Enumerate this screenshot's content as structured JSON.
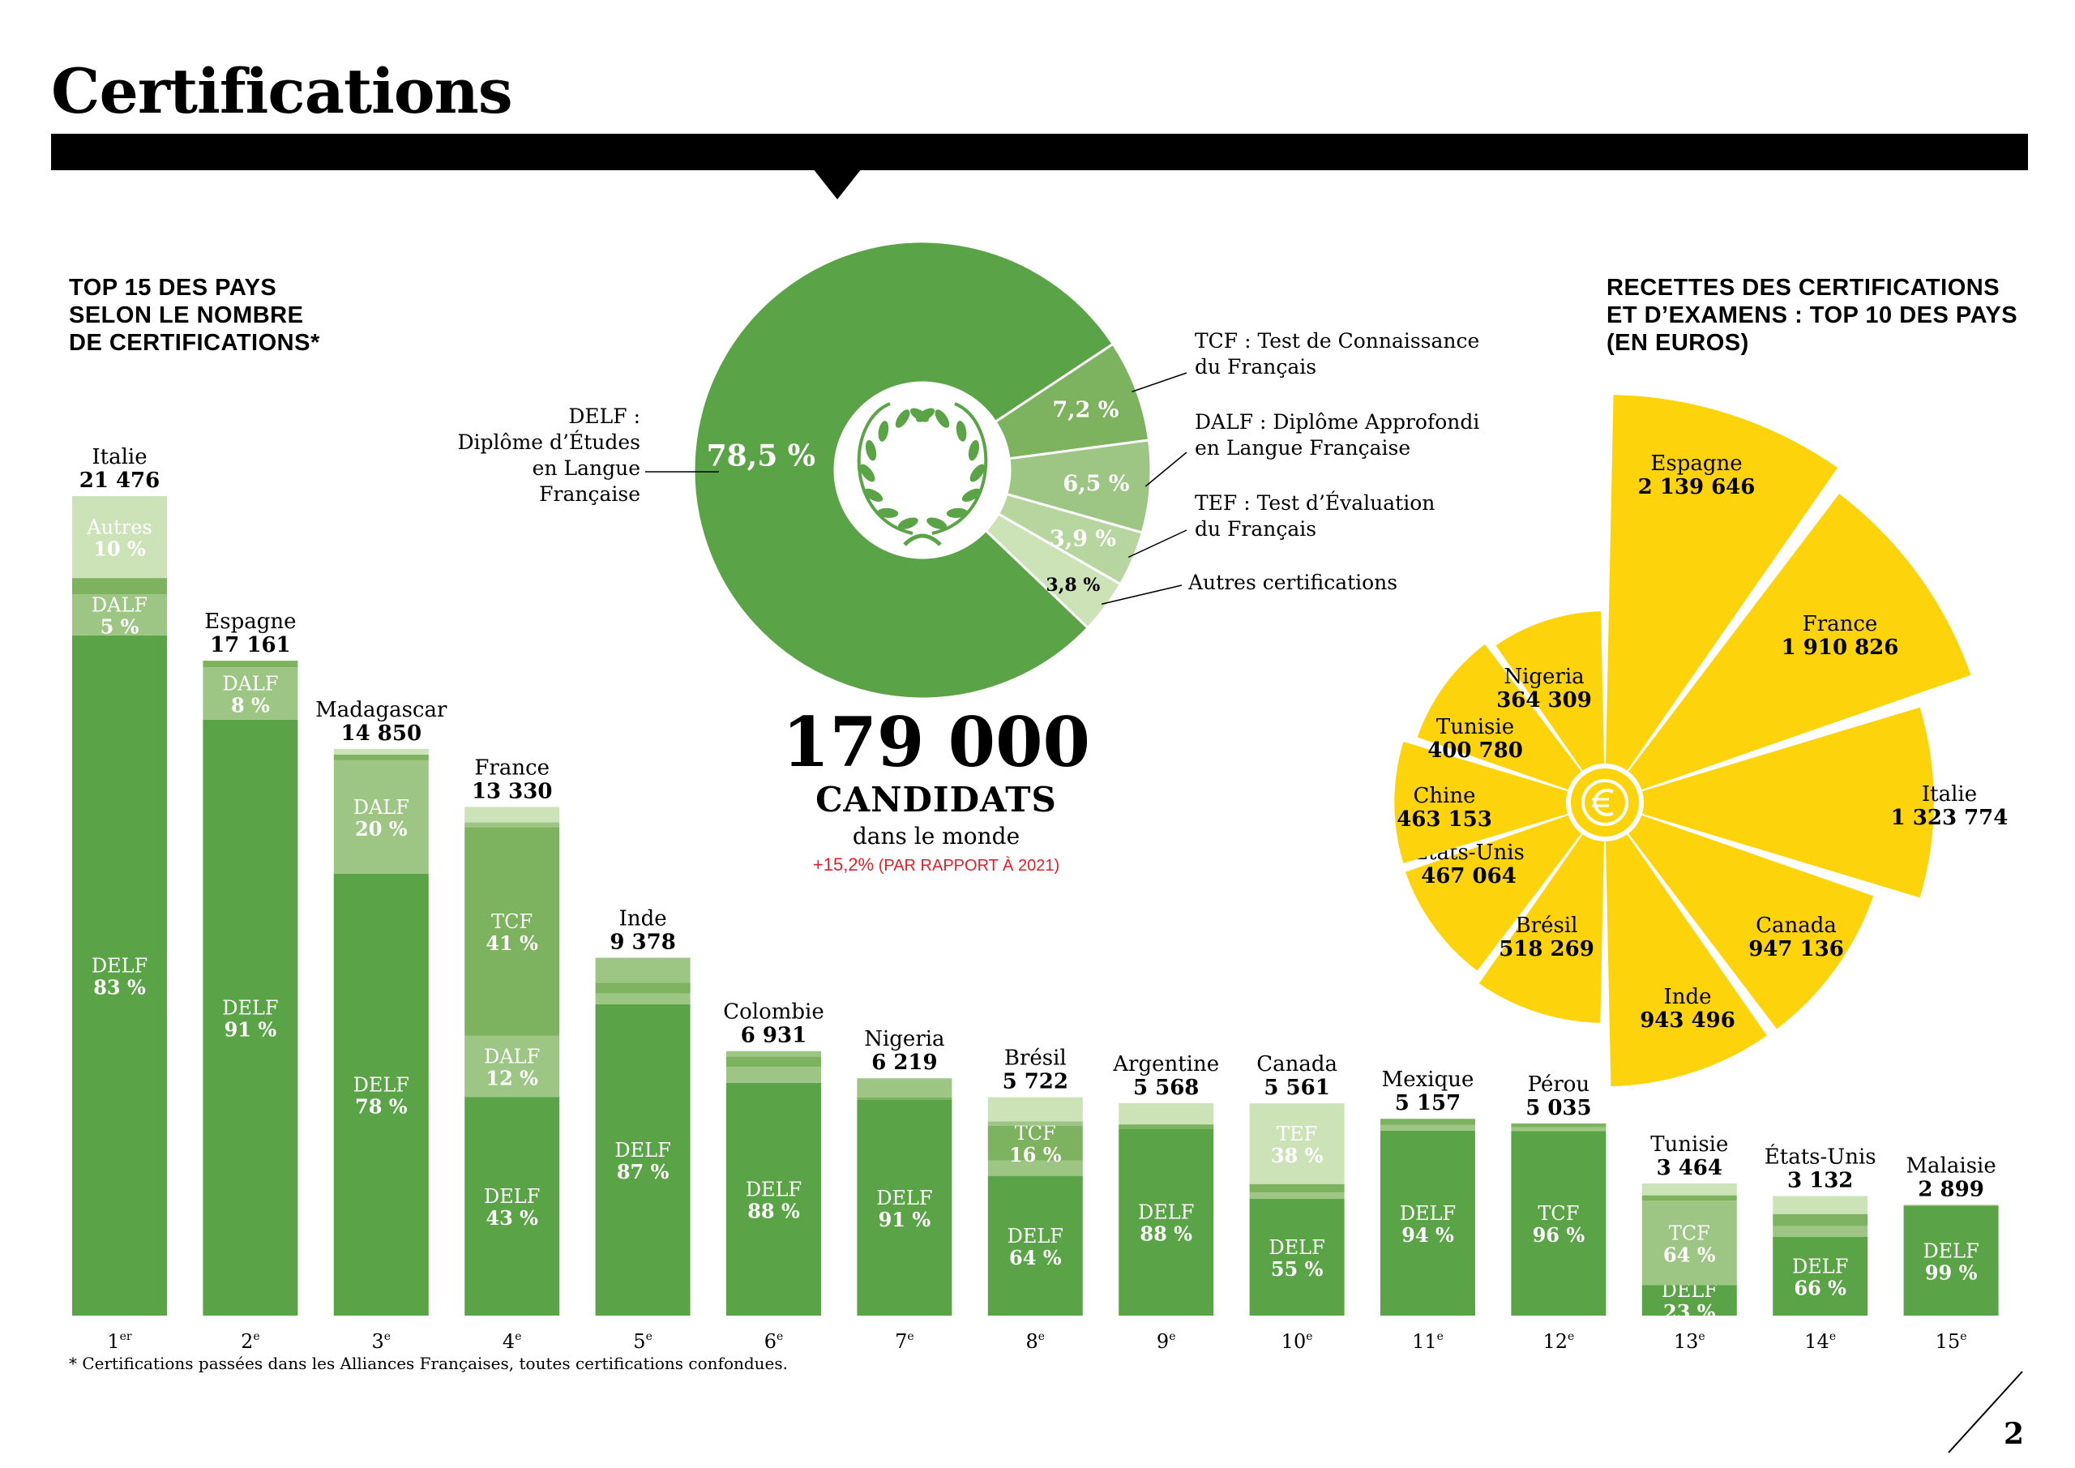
{
  "page": {
    "title": "Certifications",
    "footnote": "* Certifications passées dans les Alliances Françaises, toutes certifications confondues.",
    "page_number": "2"
  },
  "colors": {
    "delf": "#5aa447",
    "second": "#7db25e",
    "third": "#9dc685",
    "light": "#cce3b8",
    "revenue": "#fdd40c",
    "black": "#000000"
  },
  "left_section": {
    "title_lines": [
      "TOP 15 DES PAYS",
      "SELON LE NOMBRE",
      "DE CERTIFICATIONS*"
    ]
  },
  "center": {
    "total_value": "179 000",
    "total_label": "CANDIDATS",
    "subtitle": "dans le monde",
    "growth": "+15,2%",
    "growth_note": "(PAR RAPPORT À 2021)",
    "donut_labels": {
      "delf": [
        "DELF :",
        "Diplôme d’Études",
        "en Langue Française"
      ],
      "tcf": [
        "TCF : Test de Connaissance",
        "du Français"
      ],
      "dalf": [
        "DALF : Diplôme Approfondi",
        "en Langue Française"
      ],
      "tef": [
        "TEF : Test d’Évaluation",
        "du Français"
      ],
      "autres": [
        "Autres certifications"
      ]
    }
  },
  "right_section": {
    "title_lines": [
      "RECETTES DES CERTIFICATIONS",
      "ET D’EXAMENS : TOP 10 DES PAYS",
      "(EN EUROS)"
    ],
    "center_icon": "euro-icon"
  },
  "chart_data": [
    {
      "type": "bar",
      "stacked": true,
      "ranks": [
        "1er",
        "2e",
        "3e",
        "4e",
        "5e",
        "6e",
        "7e",
        "8e",
        "9e",
        "10e",
        "11e",
        "12e",
        "13e",
        "14e",
        "15e"
      ],
      "categories": [
        "Italie",
        "Espagne",
        "Madagascar",
        "France",
        "Inde",
        "Colombie",
        "Nigeria",
        "Brésil",
        "Argentine",
        "Canada",
        "Mexique",
        "Pérou",
        "Tunisie",
        "États-Unis",
        "Malaisie"
      ],
      "values": [
        21476,
        17161,
        14850,
        13330,
        9378,
        6931,
        6219,
        5722,
        5568,
        5561,
        5157,
        5035,
        3464,
        3132,
        2899
      ],
      "value_labels": [
        "21 476",
        "17 161",
        "14 850",
        "13 330",
        "9 378",
        "6 931",
        "6 219",
        "5 722",
        "5 568",
        "5 561",
        "5 157",
        "5 035",
        "3 464",
        "3 132",
        "2 899"
      ],
      "segments": [
        [
          {
            "cert": "DELF",
            "pct": 83,
            "label": "DELF",
            "pct_label": "83 %",
            "shade": "delf"
          },
          {
            "cert": "DALF",
            "pct": 5,
            "label": "DALF",
            "pct_label": "5 %",
            "shade": "third"
          },
          {
            "cert": "",
            "pct": 2,
            "shade": "second"
          },
          {
            "cert": "Autres",
            "pct": 10,
            "label": "Autres",
            "pct_label": "10 %",
            "shade": "light"
          }
        ],
        [
          {
            "cert": "DELF",
            "pct": 91,
            "label": "DELF",
            "pct_label": "91 %",
            "shade": "delf"
          },
          {
            "cert": "DALF",
            "pct": 8,
            "label": "DALF",
            "pct_label": "8 %",
            "shade": "third"
          },
          {
            "cert": "",
            "pct": 1,
            "shade": "second"
          }
        ],
        [
          {
            "cert": "DELF",
            "pct": 78,
            "label": "DELF",
            "pct_label": "78 %",
            "shade": "delf"
          },
          {
            "cert": "DALF",
            "pct": 20,
            "label": "DALF",
            "pct_label": "20 %",
            "shade": "third"
          },
          {
            "cert": "",
            "pct": 1,
            "shade": "second"
          },
          {
            "cert": "",
            "pct": 1,
            "shade": "light"
          }
        ],
        [
          {
            "cert": "DELF",
            "pct": 43,
            "label": "DELF",
            "pct_label": "43 %",
            "shade": "delf"
          },
          {
            "cert": "DALF",
            "pct": 12,
            "label": "DALF",
            "pct_label": "12 %",
            "shade": "third"
          },
          {
            "cert": "TCF",
            "pct": 41,
            "label": "TCF",
            "pct_label": "41 %",
            "shade": "second"
          },
          {
            "cert": "",
            "pct": 1,
            "shade": "third"
          },
          {
            "cert": "",
            "pct": 3,
            "shade": "light"
          }
        ],
        [
          {
            "cert": "DELF",
            "pct": 87,
            "label": "DELF",
            "pct_label": "87 %",
            "shade": "delf"
          },
          {
            "cert": "",
            "pct": 3,
            "shade": "third"
          },
          {
            "cert": "",
            "pct": 3,
            "shade": "second"
          },
          {
            "cert": "",
            "pct": 7,
            "shade": "third"
          }
        ],
        [
          {
            "cert": "DELF",
            "pct": 88,
            "label": "DELF",
            "pct_label": "88 %",
            "shade": "delf"
          },
          {
            "cert": "",
            "pct": 6,
            "shade": "third"
          },
          {
            "cert": "",
            "pct": 4,
            "shade": "second"
          },
          {
            "cert": "",
            "pct": 2,
            "shade": "third"
          }
        ],
        [
          {
            "cert": "DELF",
            "pct": 91,
            "label": "DELF",
            "pct_label": "91 %",
            "shade": "delf"
          },
          {
            "cert": "",
            "pct": 1,
            "shade": "second"
          },
          {
            "cert": "",
            "pct": 8,
            "shade": "third"
          }
        ],
        [
          {
            "cert": "DELF",
            "pct": 64,
            "label": "DELF",
            "pct_label": "64 %",
            "shade": "delf"
          },
          {
            "cert": "",
            "pct": 7,
            "shade": "third"
          },
          {
            "cert": "TCF",
            "pct": 16,
            "label": "TCF",
            "pct_label": "16 %",
            "shade": "second"
          },
          {
            "cert": "",
            "pct": 2,
            "shade": "third"
          },
          {
            "cert": "",
            "pct": 11,
            "shade": "light"
          }
        ],
        [
          {
            "cert": "DELF",
            "pct": 88,
            "label": "DELF",
            "pct_label": "88 %",
            "shade": "delf"
          },
          {
            "cert": "",
            "pct": 2,
            "shade": "second"
          },
          {
            "cert": "",
            "pct": 10,
            "shade": "light"
          }
        ],
        [
          {
            "cert": "DELF",
            "pct": 55,
            "label": "DELF",
            "pct_label": "55 %",
            "shade": "delf"
          },
          {
            "cert": "",
            "pct": 3,
            "shade": "third"
          },
          {
            "cert": "",
            "pct": 4,
            "shade": "second"
          },
          {
            "cert": "TEF",
            "pct": 38,
            "label": "TEF",
            "pct_label": "38 %",
            "shade": "light"
          }
        ],
        [
          {
            "cert": "DELF",
            "pct": 94,
            "label": "DELF",
            "pct_label": "94 %",
            "shade": "delf"
          },
          {
            "cert": "",
            "pct": 3,
            "shade": "third"
          },
          {
            "cert": "",
            "pct": 3,
            "shade": "second"
          }
        ],
        [
          {
            "cert": "TCF",
            "pct": 96,
            "label": "TCF",
            "pct_label": "96 %",
            "shade": "delf"
          },
          {
            "cert": "",
            "pct": 2,
            "shade": "third"
          },
          {
            "cert": "",
            "pct": 2,
            "shade": "second"
          }
        ],
        [
          {
            "cert": "DELF",
            "pct": 23,
            "label": "DELF",
            "pct_label": "23 %",
            "shade": "delf"
          },
          {
            "cert": "TCF",
            "pct": 64,
            "label": "TCF",
            "pct_label": "64 %",
            "shade": "third"
          },
          {
            "cert": "",
            "pct": 4,
            "shade": "second"
          },
          {
            "cert": "",
            "pct": 9,
            "shade": "light"
          }
        ],
        [
          {
            "cert": "DELF",
            "pct": 66,
            "label": "DELF",
            "pct_label": "66 %",
            "shade": "delf"
          },
          {
            "cert": "",
            "pct": 9,
            "shade": "third"
          },
          {
            "cert": "",
            "pct": 10,
            "shade": "second"
          },
          {
            "cert": "",
            "pct": 15,
            "shade": "light"
          }
        ],
        [
          {
            "cert": "DELF",
            "pct": 99,
            "label": "DELF",
            "pct_label": "99 %",
            "shade": "delf"
          },
          {
            "cert": "",
            "pct": 1,
            "shade": "second"
          }
        ]
      ]
    },
    {
      "type": "pie",
      "donut": true,
      "labels": [
        "DELF",
        "TCF",
        "DALF",
        "TEF",
        "Autres certifications"
      ],
      "values": [
        78.5,
        7.2,
        6.5,
        3.9,
        3.8
      ],
      "value_labels": [
        "78,5 %",
        "7,2 %",
        "6,5 %",
        "3,9 %",
        "3,8 %"
      ],
      "colors": [
        "#5aa447",
        "#7db25e",
        "#9dc685",
        "#b6d59f",
        "#cce3b8"
      ]
    },
    {
      "type": "pie",
      "variant": "polar",
      "labels": [
        "Espagne",
        "France",
        "Italie",
        "Canada",
        "Inde",
        "Brésil",
        "États-Unis",
        "Chine",
        "Tunisie",
        "Nigeria"
      ],
      "values": [
        2139646,
        1910826,
        1323774,
        947136,
        943496,
        518269,
        467064,
        463153,
        400780,
        364309
      ],
      "value_labels": [
        "2 139 646",
        "1 910 826",
        "1 323 774",
        "947 136",
        "943 496",
        "518 269",
        "467 064",
        "463 153",
        "400 780",
        "364 309"
      ],
      "color": "#fdd40c"
    }
  ]
}
